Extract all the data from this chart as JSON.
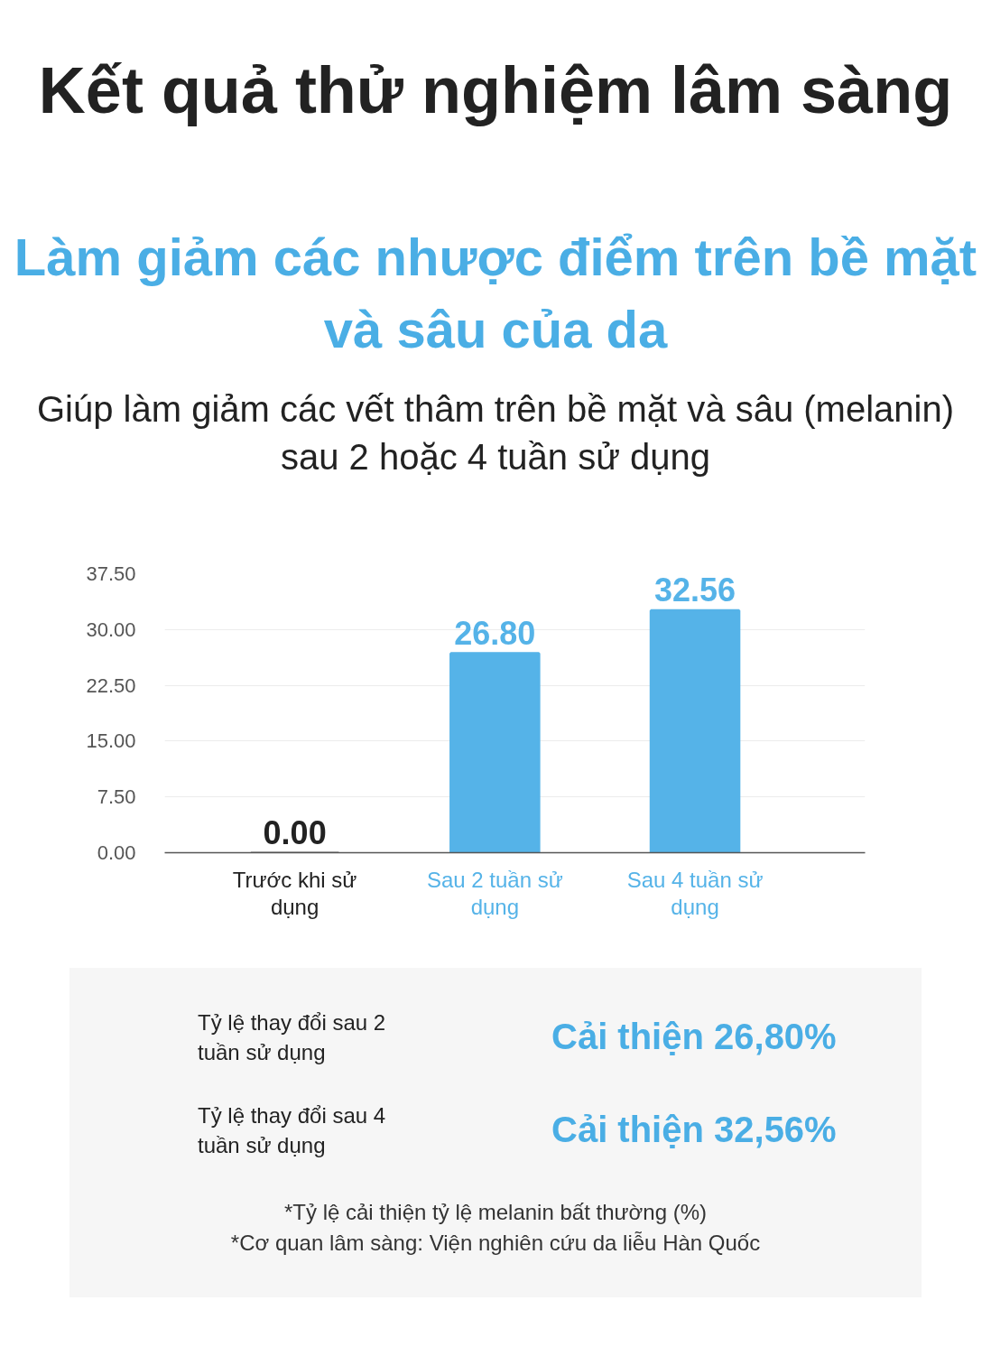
{
  "chart_data": {
    "type": "bar",
    "title": "Kết quả thử nghiệm lâm sàng",
    "subtitle": "Làm giảm các nhược điểm trên bề mặt\nvà sâu của da",
    "categories": [
      "Trước khi sử dụng",
      "Sau 2 tuần sử dụng",
      "Sau 4 tuần sử dụng"
    ],
    "values": [
      0,
      26.8,
      32.56
    ],
    "colors": [
      "#b3b3b3",
      "#55b3e8",
      "#55b3e8"
    ],
    "value_labels": [
      "0.00",
      "26.80",
      "32.56"
    ],
    "ylim": [
      0,
      37.5
    ],
    "yticks": [
      {
        "value": 0,
        "label": "0.00"
      },
      {
        "value": 7.5,
        "label": "7.50"
      },
      {
        "value": 15,
        "label": "15.00"
      },
      {
        "value": 22.5,
        "label": "22.50"
      },
      {
        "value": 30,
        "label": "30.00"
      },
      {
        "value": 37.5,
        "label": "37.50"
      }
    ],
    "grid": "y",
    "annotations": [
      "Giúp làm giảm các vết thâm trên bề mặt và sâu (melanin)\nsau 2 hoặc 4 tuần sử dụng",
      "Tỷ lệ thay đổi sau 2\ntuần sử dụng",
      "Cải thiện 26,80%",
      "Tỷ lệ thay đổi sau 4\ntuần sử dụng",
      "Cải thiện 32,56%",
      "*Tỷ lệ cải thiện tỷ lệ melanin bất thường (%)",
      "*Cơ quan lâm sàng: Viện nghiên cứu da liễu Hàn Quốc"
    ]
  }
}
